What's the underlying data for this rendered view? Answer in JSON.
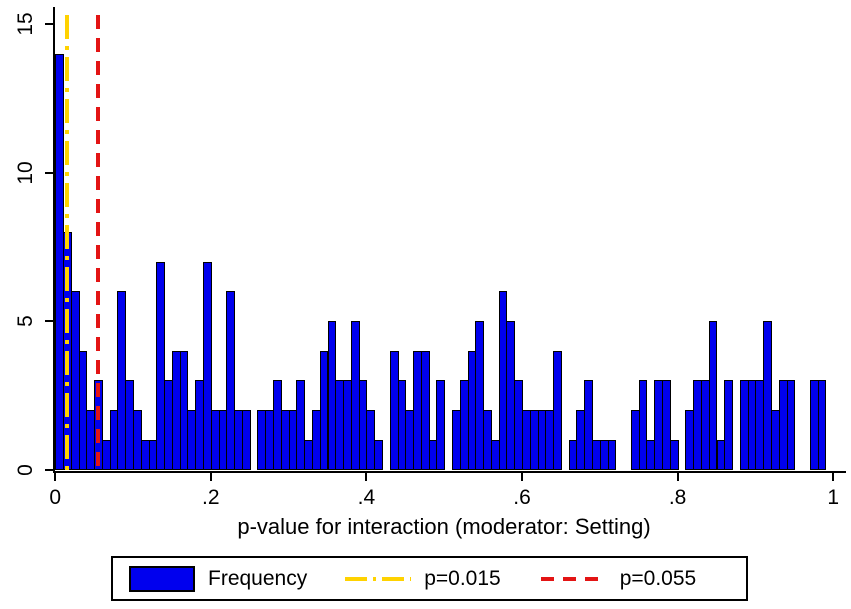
{
  "chart_data": {
    "type": "bar",
    "subtype": "histogram",
    "title": "",
    "xlabel": "p-value for interaction (moderator: Setting)",
    "ylabel": "",
    "series_name": "Frequency",
    "bin_start": 0,
    "bin_width": 0.01,
    "values": [
      14,
      8,
      6,
      4,
      2,
      3,
      1,
      2,
      6,
      3,
      2,
      1,
      1,
      7,
      3,
      4,
      4,
      2,
      3,
      7,
      2,
      2,
      6,
      2,
      2,
      0,
      2,
      2,
      3,
      2,
      2,
      3,
      1,
      2,
      4,
      5,
      3,
      3,
      5,
      3,
      2,
      1,
      0,
      4,
      3,
      2,
      4,
      4,
      1,
      3,
      0,
      2,
      3,
      4,
      5,
      2,
      1,
      6,
      5,
      3,
      2,
      2,
      2,
      2,
      4,
      0,
      1,
      2,
      3,
      1,
      1,
      1,
      0,
      0,
      2,
      3,
      1,
      3,
      3,
      1,
      0,
      2,
      3,
      3,
      5,
      1,
      3,
      0,
      3,
      3,
      3,
      5,
      2,
      3,
      3,
      0,
      0,
      3,
      3,
      0
    ],
    "xlim": [
      0,
      1
    ],
    "ylim": [
      0,
      15
    ],
    "x_ticks": [
      {
        "label": "0",
        "value": 0
      },
      {
        "label": ".2",
        "value": 0.2
      },
      {
        "label": ".4",
        "value": 0.4
      },
      {
        "label": ".6",
        "value": 0.6
      },
      {
        "label": ".8",
        "value": 0.8
      },
      {
        "label": "1",
        "value": 1
      }
    ],
    "y_ticks": [
      {
        "label": "0",
        "value": 0
      },
      {
        "label": "5",
        "value": 5
      },
      {
        "label": "10",
        "value": 10
      },
      {
        "label": "15",
        "value": 15
      }
    ],
    "grid": false,
    "legend_position": "bottom",
    "vlines": [
      {
        "label": "p=0.015",
        "value": 0.015,
        "color": "#ffd200",
        "dash": "dashdot"
      },
      {
        "label": "p=0.055",
        "value": 0.055,
        "color": "#e31414",
        "dash": "dash"
      }
    ],
    "legend": [
      {
        "label": "Frequency",
        "swatch": "bar"
      },
      {
        "label": "p=0.015",
        "swatch": "dashdot"
      },
      {
        "label": "p=0.055",
        "swatch": "dash"
      }
    ],
    "colors": {
      "bar_fill": "#0000ee",
      "bar_border": "#000000",
      "axis": "#000000",
      "background": "#ffffff"
    }
  }
}
